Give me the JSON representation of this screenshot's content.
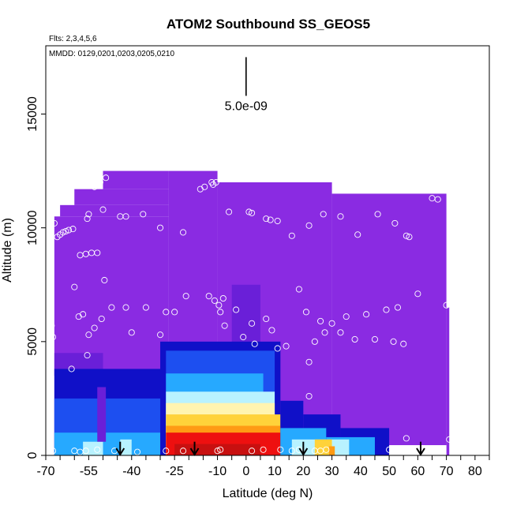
{
  "chart_data": {
    "type": "heatmap",
    "title": "ATOM2 Southbound SS_GEOS5",
    "flights_label": "Flts: 2,3,4,5,6",
    "dates_label": "MMDD: 0129,0201,0203,0205,0210",
    "xlabel": "Latitude (deg N)",
    "ylabel": "Altitude (m)",
    "xlim": [
      -70,
      85
    ],
    "ylim": [
      0,
      18000
    ],
    "x_ticks": [
      {
        "value": -70,
        "label": "-70"
      },
      {
        "value": -55,
        "label": "-55"
      },
      {
        "value": -40,
        "label": "-40"
      },
      {
        "value": -25,
        "label": "-25"
      },
      {
        "value": -10,
        "label": "-10"
      },
      {
        "value": 0,
        "label": "0"
      },
      {
        "value": 10,
        "label": "10"
      },
      {
        "value": 20,
        "label": "20"
      },
      {
        "value": 30,
        "label": "30"
      },
      {
        "value": 40,
        "label": "40"
      },
      {
        "value": 50,
        "label": "50"
      },
      {
        "value": 60,
        "label": "60"
      },
      {
        "value": 70,
        "label": "70"
      },
      {
        "value": 80,
        "label": "80"
      }
    ],
    "x_minor_ticks": [
      -65,
      -60,
      -50,
      -45,
      -35,
      -30,
      -20,
      -15,
      -5,
      5,
      15,
      25,
      35,
      45,
      55,
      65,
      75,
      85
    ],
    "y_ticks": [
      {
        "value": 0,
        "label": "0"
      },
      {
        "value": 5000,
        "label": "5000"
      },
      {
        "value": 10000,
        "label": "10000"
      },
      {
        "value": 15000,
        "label": "15000"
      }
    ],
    "scale_bar": {
      "label": "5.0e-09",
      "lat": 0,
      "alt_low": 15800,
      "alt_high": 17500
    },
    "arrows_lat": [
      -44,
      -18,
      20,
      61
    ],
    "colors": {
      "purple": "#8a2be2",
      "blue_violet": "#6a1fd8",
      "dark_blue": "#1010c8",
      "blue": "#1d4ff0",
      "sky": "#26a9ff",
      "light_cyan": "#b8f2ff",
      "pale_yellow": "#fff4b0",
      "yellow": "#ffd23a",
      "orange": "#ff9a14",
      "red": "#ee1010",
      "dark_red": "#c81010",
      "white": "#ffffff"
    },
    "regions": [
      {
        "lat": [
          -67,
          -27
        ],
        "alt": [
          0,
          10500
        ],
        "color": "purple"
      },
      {
        "lat": [
          -65,
          -27
        ],
        "alt": [
          10500,
          11000
        ],
        "color": "purple"
      },
      {
        "lat": [
          -60,
          -27
        ],
        "alt": [
          11000,
          11700
        ],
        "color": "purple"
      },
      {
        "lat": [
          -50,
          -27
        ],
        "alt": [
          11700,
          12500
        ],
        "color": "purple"
      },
      {
        "lat": [
          -27,
          -10
        ],
        "alt": [
          0,
          12500
        ],
        "color": "purple"
      },
      {
        "lat": [
          -10,
          30
        ],
        "alt": [
          0,
          12000
        ],
        "color": "purple"
      },
      {
        "lat": [
          30,
          70
        ],
        "alt": [
          0,
          11500
        ],
        "color": "purple"
      },
      {
        "lat": [
          70,
          71
        ],
        "alt": [
          0,
          6500
        ],
        "color": "purple"
      },
      {
        "lat": [
          -5,
          5
        ],
        "alt": [
          4000,
          7500
        ],
        "color": "blue_violet"
      },
      {
        "lat": [
          -67,
          -50
        ],
        "alt": [
          3500,
          4500
        ],
        "color": "blue_violet"
      },
      {
        "lat": [
          -67,
          -28
        ],
        "alt": [
          0,
          3800
        ],
        "color": "dark_blue"
      },
      {
        "lat": [
          -67,
          -28
        ],
        "alt": [
          0,
          2500
        ],
        "color": "blue"
      },
      {
        "lat": [
          -67,
          -28
        ],
        "alt": [
          0,
          1000
        ],
        "color": "sky"
      },
      {
        "lat": [
          -57,
          -50
        ],
        "alt": [
          0,
          600
        ],
        "color": "light_cyan"
      },
      {
        "lat": [
          -44,
          -40
        ],
        "alt": [
          0,
          700
        ],
        "color": "light_cyan"
      },
      {
        "lat": [
          -52,
          -49
        ],
        "alt": [
          600,
          3000
        ],
        "color": "blue_violet"
      },
      {
        "lat": [
          -30,
          12
        ],
        "alt": [
          0,
          5000
        ],
        "color": "dark_blue"
      },
      {
        "lat": [
          -28,
          10
        ],
        "alt": [
          0,
          4600
        ],
        "color": "blue"
      },
      {
        "lat": [
          -28,
          6
        ],
        "alt": [
          0,
          3600
        ],
        "color": "sky"
      },
      {
        "lat": [
          -28,
          10
        ],
        "alt": [
          0,
          2800
        ],
        "color": "light_cyan"
      },
      {
        "lat": [
          -28,
          10
        ],
        "alt": [
          0,
          2300
        ],
        "color": "pale_yellow"
      },
      {
        "lat": [
          -28,
          12
        ],
        "alt": [
          0,
          1800
        ],
        "color": "yellow"
      },
      {
        "lat": [
          -28,
          12
        ],
        "alt": [
          0,
          1300
        ],
        "color": "orange"
      },
      {
        "lat": [
          -28,
          12
        ],
        "alt": [
          0,
          1000
        ],
        "color": "red"
      },
      {
        "lat": [
          -25,
          5
        ],
        "alt": [
          0,
          500
        ],
        "color": "dark_red"
      },
      {
        "lat": [
          12,
          20
        ],
        "alt": [
          0,
          2400
        ],
        "color": "dark_blue"
      },
      {
        "lat": [
          20,
          33
        ],
        "alt": [
          0,
          1800
        ],
        "color": "dark_blue"
      },
      {
        "lat": [
          33,
          50
        ],
        "alt": [
          0,
          1200
        ],
        "color": "dark_blue"
      },
      {
        "lat": [
          12,
          28
        ],
        "alt": [
          0,
          1200
        ],
        "color": "sky"
      },
      {
        "lat": [
          28,
          45
        ],
        "alt": [
          0,
          800
        ],
        "color": "sky"
      },
      {
        "lat": [
          16,
          36
        ],
        "alt": [
          0,
          700
        ],
        "color": "light_cyan"
      },
      {
        "lat": [
          24,
          30
        ],
        "alt": [
          0,
          700
        ],
        "color": "yellow"
      },
      {
        "lat": [
          29,
          31
        ],
        "alt": [
          0,
          400
        ],
        "color": "orange"
      },
      {
        "lat": [
          50,
          70
        ],
        "alt": [
          0,
          450
        ],
        "color": "white"
      }
    ],
    "flight_points": [
      {
        "lat": -67.0,
        "alt": 10200
      },
      {
        "lat": -66.0,
        "alt": 9600
      },
      {
        "lat": -65.0,
        "alt": 9700
      },
      {
        "lat": -64.0,
        "alt": 9800
      },
      {
        "lat": -63.0,
        "alt": 9850
      },
      {
        "lat": -62.0,
        "alt": 9900
      },
      {
        "lat": -60.5,
        "alt": 9950
      },
      {
        "lat": -55.5,
        "alt": 10400
      },
      {
        "lat": -55.0,
        "alt": 10600
      },
      {
        "lat": -53.0,
        "alt": 11800
      },
      {
        "lat": -51.0,
        "alt": 12000
      },
      {
        "lat": -49.0,
        "alt": 12200
      },
      {
        "lat": -50.0,
        "alt": 10800
      },
      {
        "lat": -44.0,
        "alt": 10500
      },
      {
        "lat": -42.0,
        "alt": 10500
      },
      {
        "lat": -36.0,
        "alt": 10600
      },
      {
        "lat": -30.0,
        "alt": 10000
      },
      {
        "lat": -22.0,
        "alt": 9800
      },
      {
        "lat": -16.0,
        "alt": 11700
      },
      {
        "lat": -14.5,
        "alt": 11800
      },
      {
        "lat": -12.0,
        "alt": 12000
      },
      {
        "lat": -11.5,
        "alt": 11900
      },
      {
        "lat": -10.5,
        "alt": 12000
      },
      {
        "lat": -6.0,
        "alt": 10700
      },
      {
        "lat": 1.0,
        "alt": 10700
      },
      {
        "lat": 2.0,
        "alt": 10650
      },
      {
        "lat": 7.0,
        "alt": 10400
      },
      {
        "lat": 8.5,
        "alt": 10350
      },
      {
        "lat": 11.0,
        "alt": 10300
      },
      {
        "lat": 16.0,
        "alt": 9650
      },
      {
        "lat": 22.0,
        "alt": 10100
      },
      {
        "lat": 27.0,
        "alt": 10600
      },
      {
        "lat": 33.0,
        "alt": 10500
      },
      {
        "lat": 39.0,
        "alt": 9700
      },
      {
        "lat": 46.0,
        "alt": 10600
      },
      {
        "lat": 52.0,
        "alt": 10200
      },
      {
        "lat": 56.0,
        "alt": 9650
      },
      {
        "lat": 57.0,
        "alt": 9600
      },
      {
        "lat": 65.0,
        "alt": 11300
      },
      {
        "lat": 67.0,
        "alt": 11250
      },
      {
        "lat": -58.0,
        "alt": 8800
      },
      {
        "lat": -56.0,
        "alt": 8850
      },
      {
        "lat": -54.0,
        "alt": 8900
      },
      {
        "lat": -52.0,
        "alt": 8900
      },
      {
        "lat": -49.5,
        "alt": 7700
      },
      {
        "lat": -50.5,
        "alt": 6000
      },
      {
        "lat": -47.0,
        "alt": 6500
      },
      {
        "lat": -42.0,
        "alt": 6500
      },
      {
        "lat": -40.0,
        "alt": 5400
      },
      {
        "lat": -35.0,
        "alt": 6500
      },
      {
        "lat": -28.0,
        "alt": 6300
      },
      {
        "lat": -25.0,
        "alt": 6300
      },
      {
        "lat": -30.0,
        "alt": 5300
      },
      {
        "lat": -21.0,
        "alt": 7000
      },
      {
        "lat": -13.0,
        "alt": 7000
      },
      {
        "lat": -11.0,
        "alt": 6800
      },
      {
        "lat": -9.5,
        "alt": 6600
      },
      {
        "lat": -9.0,
        "alt": 6300
      },
      {
        "lat": -8.0,
        "alt": 6900
      },
      {
        "lat": -7.5,
        "alt": 5700
      },
      {
        "lat": -3.5,
        "alt": 6400
      },
      {
        "lat": -1.0,
        "alt": 5200
      },
      {
        "lat": 2.0,
        "alt": 5800
      },
      {
        "lat": 3.0,
        "alt": 4900
      },
      {
        "lat": 7.0,
        "alt": 6000
      },
      {
        "lat": 9.0,
        "alt": 5500
      },
      {
        "lat": 11.0,
        "alt": 4700
      },
      {
        "lat": 14.0,
        "alt": 4800
      },
      {
        "lat": 18.5,
        "alt": 7300
      },
      {
        "lat": 21.0,
        "alt": 6300
      },
      {
        "lat": 22.0,
        "alt": 4100
      },
      {
        "lat": 24.0,
        "alt": 5000
      },
      {
        "lat": 26.0,
        "alt": 5900
      },
      {
        "lat": 27.5,
        "alt": 5400
      },
      {
        "lat": 30.0,
        "alt": 5800
      },
      {
        "lat": 33.0,
        "alt": 5400
      },
      {
        "lat": 35.0,
        "alt": 6100
      },
      {
        "lat": 38.0,
        "alt": 5100
      },
      {
        "lat": 42.0,
        "alt": 6200
      },
      {
        "lat": 45.0,
        "alt": 5100
      },
      {
        "lat": 49.0,
        "alt": 6400
      },
      {
        "lat": 51.5,
        "alt": 5000
      },
      {
        "lat": 53.0,
        "alt": 6500
      },
      {
        "lat": 55.0,
        "alt": 4900
      },
      {
        "lat": 60.0,
        "alt": 7100
      },
      {
        "lat": 70.0,
        "alt": 6600
      },
      {
        "lat": -60.0,
        "alt": 7400
      },
      {
        "lat": -58.5,
        "alt": 6100
      },
      {
        "lat": -57.0,
        "alt": 6200
      },
      {
        "lat": -55.0,
        "alt": 5300
      },
      {
        "lat": -53.0,
        "alt": 5600
      },
      {
        "lat": -55.5,
        "alt": 4400
      },
      {
        "lat": -61.0,
        "alt": 3800
      },
      {
        "lat": -68.0,
        "alt": 5700
      },
      {
        "lat": -67.5,
        "alt": 5200
      },
      {
        "lat": 22.0,
        "alt": 2600
      },
      {
        "lat": -67.5,
        "alt": 200
      },
      {
        "lat": -60.0,
        "alt": 200
      },
      {
        "lat": -58.0,
        "alt": 150
      },
      {
        "lat": -56.0,
        "alt": 200
      },
      {
        "lat": -52.0,
        "alt": 250
      },
      {
        "lat": -46.0,
        "alt": 200
      },
      {
        "lat": -38.0,
        "alt": 150
      },
      {
        "lat": -28.0,
        "alt": 200
      },
      {
        "lat": -22.0,
        "alt": 200
      },
      {
        "lat": -10.0,
        "alt": 200
      },
      {
        "lat": -9.0,
        "alt": 250
      },
      {
        "lat": 2.0,
        "alt": 200
      },
      {
        "lat": 6.0,
        "alt": 250
      },
      {
        "lat": 12.0,
        "alt": 250
      },
      {
        "lat": 16.0,
        "alt": 200
      },
      {
        "lat": 18.5,
        "alt": 250
      },
      {
        "lat": 24.0,
        "alt": 200
      },
      {
        "lat": 26.0,
        "alt": 200
      },
      {
        "lat": 28.0,
        "alt": 250
      },
      {
        "lat": 50.0,
        "alt": 250
      },
      {
        "lat": 56.0,
        "alt": 750
      },
      {
        "lat": 71.0,
        "alt": 700
      }
    ]
  }
}
